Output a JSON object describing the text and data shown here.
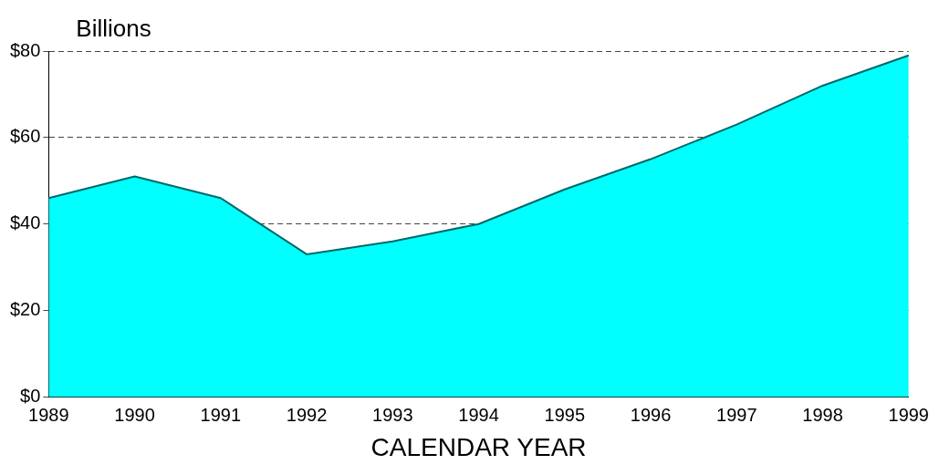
{
  "chart_data": {
    "type": "area",
    "ylabel": "Billions",
    "xlabel": "CALENDAR YEAR",
    "categories": [
      "1989",
      "1990",
      "1991",
      "1992",
      "1993",
      "1994",
      "1995",
      "1996",
      "1997",
      "1998",
      "1999"
    ],
    "series": [
      {
        "color": "#00ffff",
        "values": [
          46,
          51,
          46,
          33,
          36,
          40,
          48,
          55,
          63,
          72,
          79
        ]
      }
    ],
    "ylim": [
      0,
      80
    ],
    "yticks": [
      {
        "value": 0,
        "label": "$0"
      },
      {
        "value": 20,
        "label": "$20"
      },
      {
        "value": 40,
        "label": "$40"
      },
      {
        "value": 60,
        "label": "$60"
      },
      {
        "value": 80,
        "label": "$80"
      }
    ],
    "grid": "y",
    "legend": false,
    "line_style": "solid",
    "marker": "none"
  }
}
